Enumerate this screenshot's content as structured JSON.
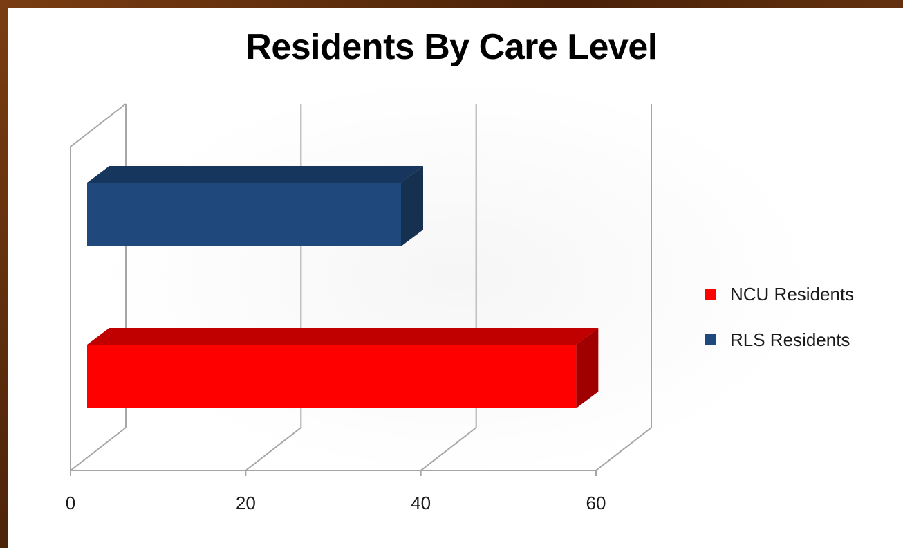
{
  "chart_data": {
    "type": "bar",
    "orientation": "horizontal",
    "style": "3d",
    "title": "Residents By Care Level",
    "xlabel": "",
    "ylabel": "",
    "xlim": [
      0,
      60
    ],
    "xticks": [
      0,
      20,
      40,
      60
    ],
    "grid": true,
    "legend_position": "right",
    "series": [
      {
        "name": "NCU Residents",
        "value": 56,
        "color": "#ff0000",
        "side_color": "#a00000",
        "top_color": "#c00000"
      },
      {
        "name": "RLS Residents",
        "value": 36,
        "color": "#1f497d",
        "side_color": "#16304f",
        "top_color": "#17365d"
      }
    ]
  }
}
